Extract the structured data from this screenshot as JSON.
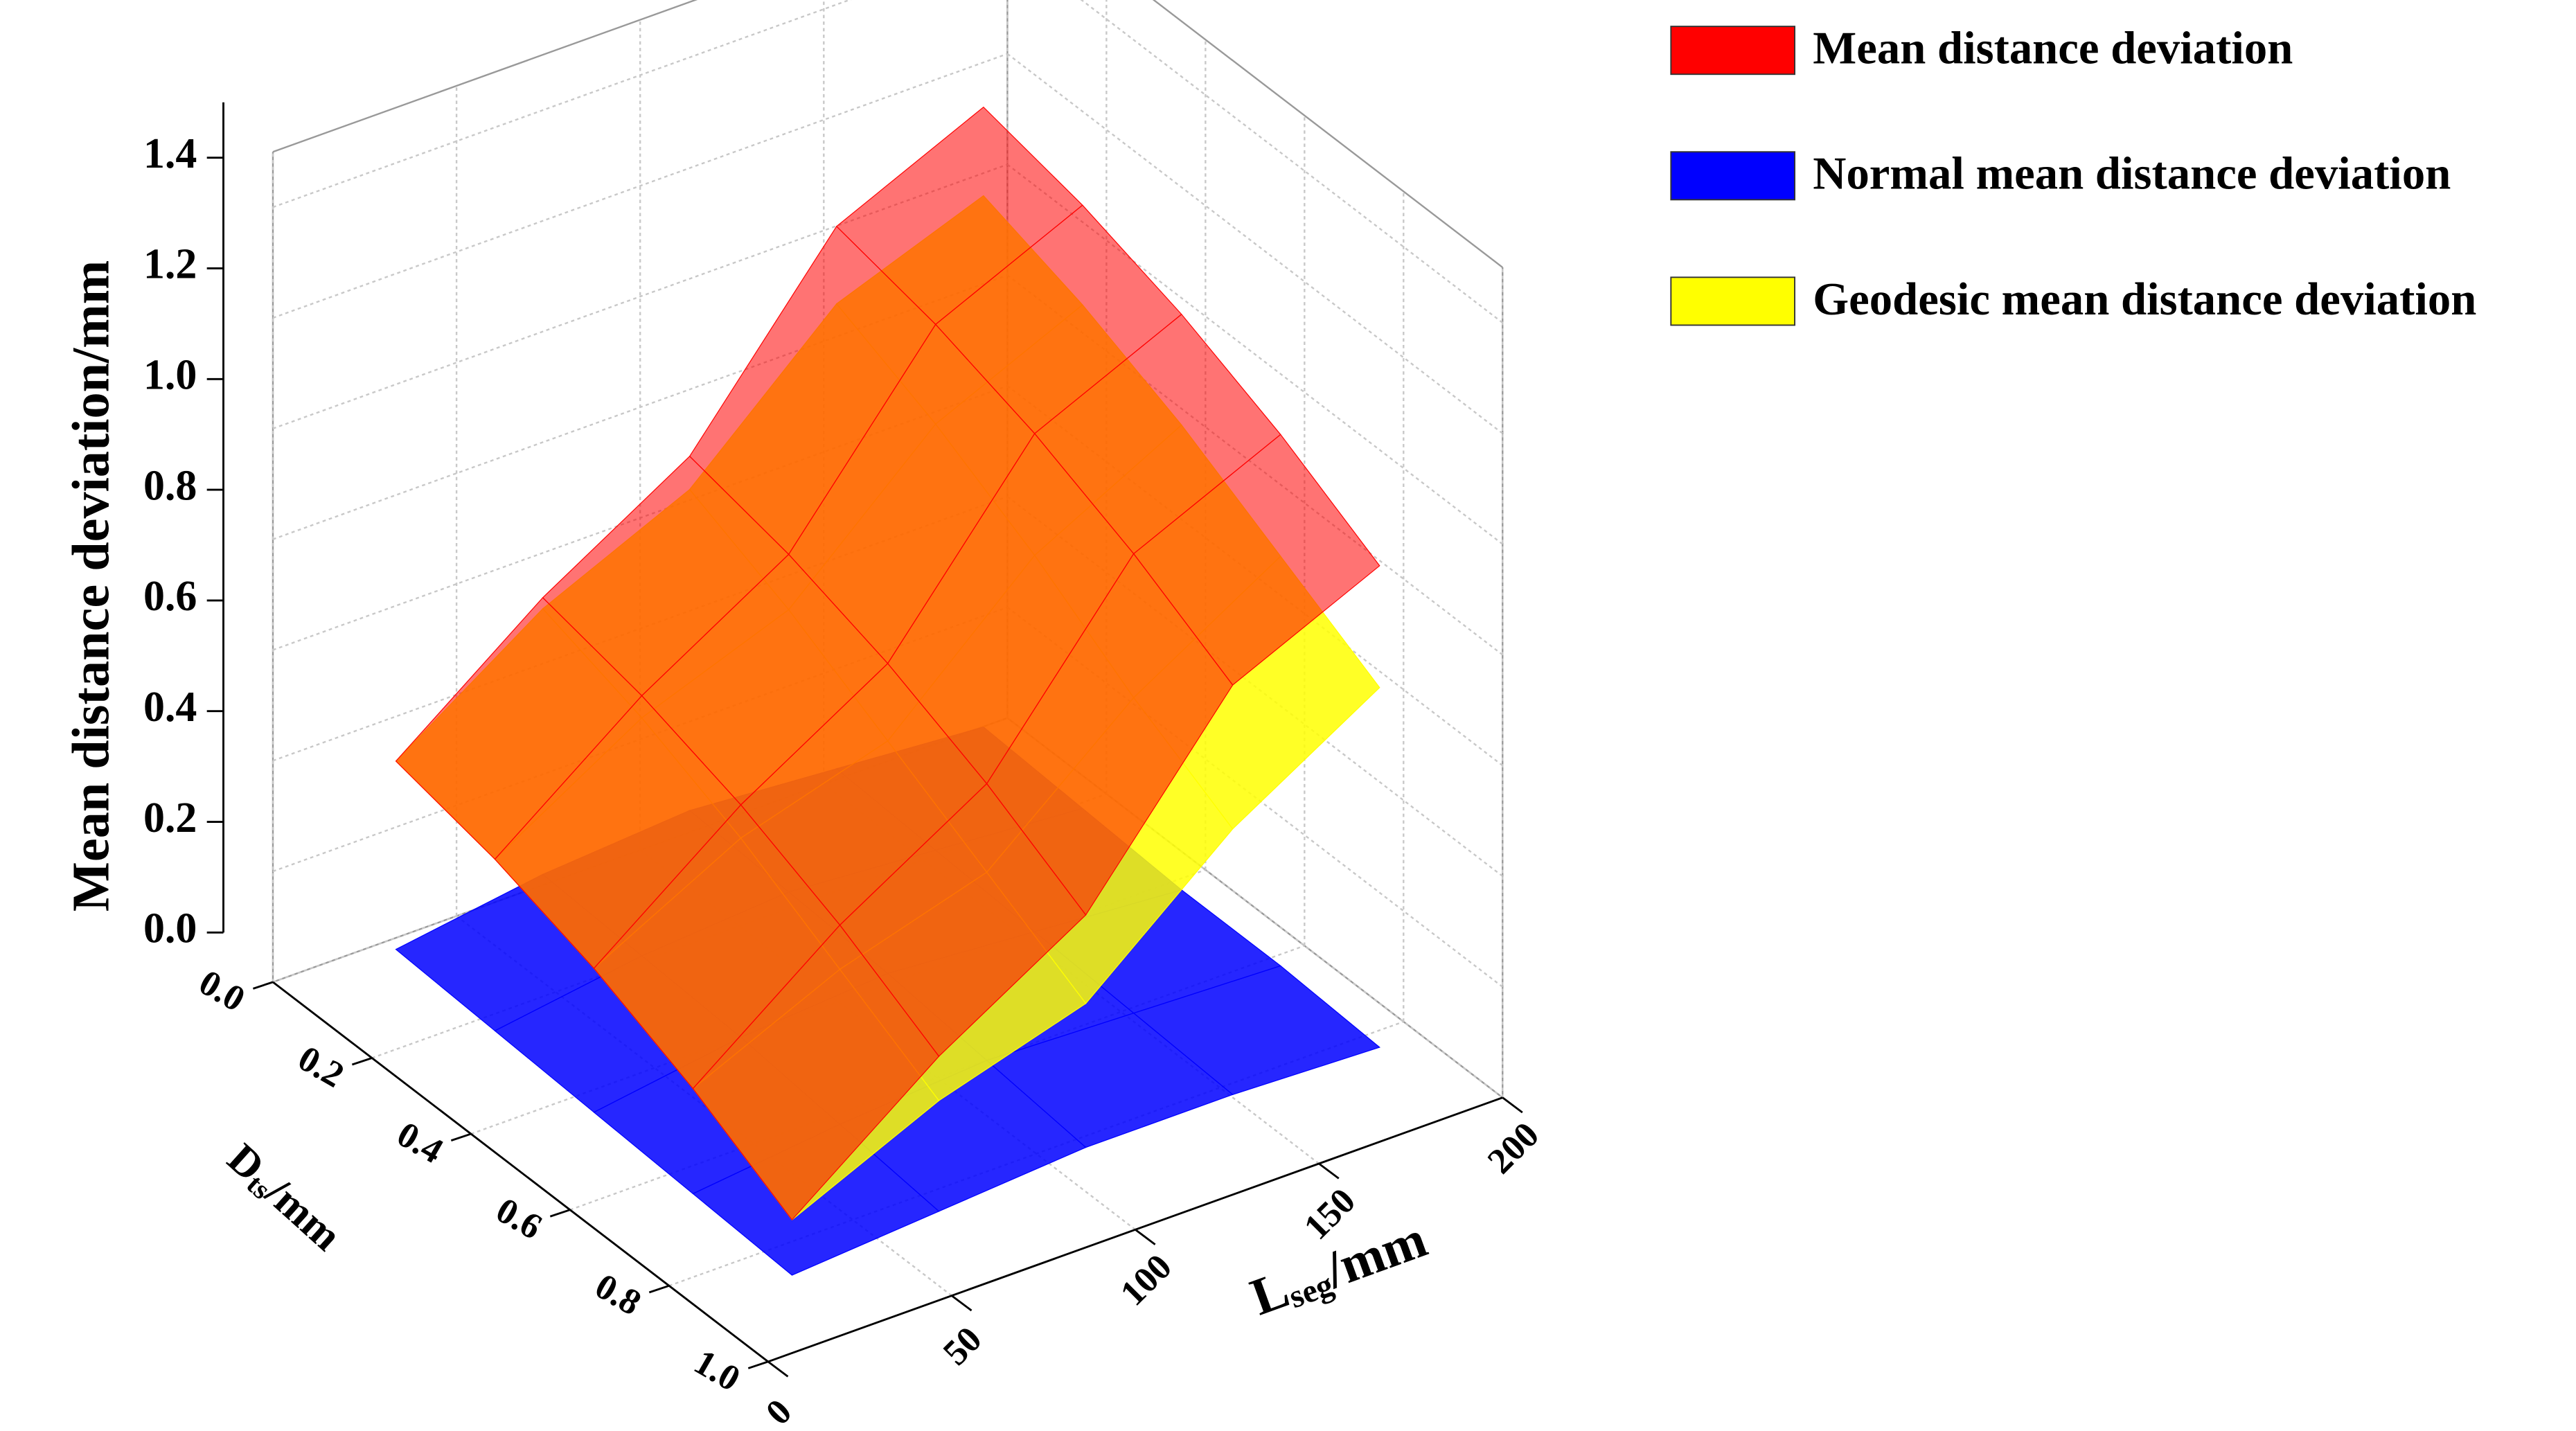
{
  "chart_data": {
    "type": "surface3d",
    "z_label": "Mean distance deviation/mm",
    "x_label": {
      "main": "L",
      "sub": "seg",
      "unit": "/mm"
    },
    "y_label": {
      "main": "D",
      "sub": "ts",
      "unit": "/mm"
    },
    "x": [
      20,
      60,
      100,
      140,
      180
    ],
    "y": [
      0.1,
      0.3,
      0.5,
      0.7,
      0.9
    ],
    "xlim": [
      0,
      200
    ],
    "xticks": [
      0,
      50,
      100,
      150,
      200
    ],
    "ylim": [
      0,
      1
    ],
    "yticks": [
      {
        "value": 0,
        "label": "0.0"
      },
      {
        "value": 0.2,
        "label": "0.2"
      },
      {
        "value": 0.4,
        "label": "0.4"
      },
      {
        "value": 0.6,
        "label": "0.6"
      },
      {
        "value": 0.8,
        "label": "0.8"
      },
      {
        "value": 1,
        "label": "1.0"
      }
    ],
    "zlim": [
      0,
      1.5
    ],
    "zticks": [
      {
        "value": 0,
        "label": "0.0"
      },
      {
        "value": 0.2,
        "label": "0.2"
      },
      {
        "value": 0.4,
        "label": "0.4"
      },
      {
        "value": 0.6,
        "label": "0.6"
      },
      {
        "value": 0.8,
        "label": "0.8"
      },
      {
        "value": 1,
        "label": "1.0"
      },
      {
        "value": 1.2,
        "label": "1.2"
      },
      {
        "value": 1.4,
        "label": "1.4"
      }
    ],
    "grid": true,
    "legend_position": "top-right",
    "series": [
      {
        "name": "Mean distance deviation",
        "color": "#ff0000",
        "values": [
          [
            0.42,
            0.62,
            0.78,
            1.1,
            1.22
          ],
          [
            0.38,
            0.58,
            0.74,
            1.06,
            1.18
          ],
          [
            0.32,
            0.52,
            0.68,
            1.0,
            1.12
          ],
          [
            0.24,
            0.44,
            0.6,
            0.92,
            1.04
          ],
          [
            0.14,
            0.34,
            0.5,
            0.82,
            0.94
          ]
        ]
      },
      {
        "name": "Normal mean distance deviation",
        "color": "#0000ff",
        "values": [
          [
            0.08,
            0.12,
            0.14,
            0.12,
            0.1
          ],
          [
            0.07,
            0.11,
            0.13,
            0.11,
            0.09
          ],
          [
            0.06,
            0.1,
            0.12,
            0.1,
            0.08
          ],
          [
            0.05,
            0.08,
            0.1,
            0.09,
            0.08
          ],
          [
            0.04,
            0.06,
            0.08,
            0.08,
            0.07
          ]
        ]
      },
      {
        "name": "Geodesic mean distance deviation",
        "color": "#ffff00",
        "values": [
          [
            0.42,
            0.6,
            0.72,
            0.96,
            1.06
          ],
          [
            0.38,
            0.54,
            0.64,
            0.88,
            1.0
          ],
          [
            0.32,
            0.46,
            0.54,
            0.78,
            0.92
          ],
          [
            0.24,
            0.36,
            0.44,
            0.66,
            0.82
          ],
          [
            0.14,
            0.26,
            0.34,
            0.56,
            0.72
          ]
        ]
      }
    ]
  }
}
